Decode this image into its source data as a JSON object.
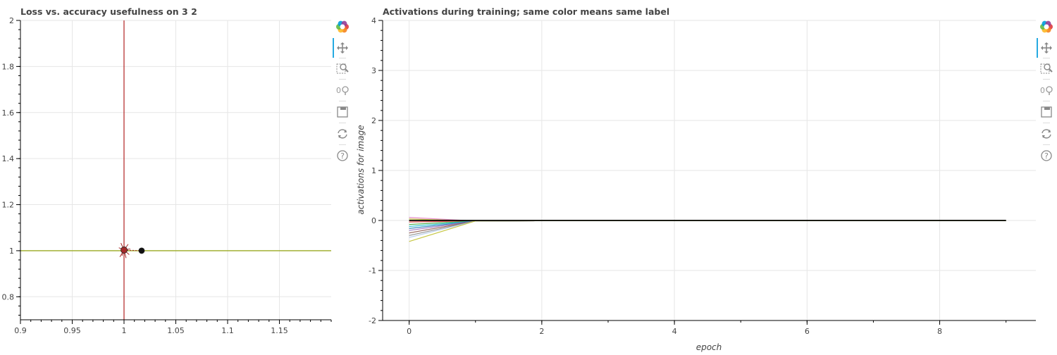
{
  "left_plot": {
    "title": "Loss vs. accuracy usefulness on 3 2"
  },
  "right_plot": {
    "title": "Activations during training; same color means same label",
    "xlabel": "epoch",
    "ylabel": "activations for image"
  },
  "toolbar": {
    "tools": [
      "bokeh-logo-icon",
      "pan-icon",
      "box-zoom-icon",
      "wheel-zoom-icon",
      "save-icon",
      "reset-icon",
      "help-icon"
    ],
    "active_tool": "pan-icon",
    "accent": "#26aae1"
  },
  "chart_data": [
    {
      "type": "scatter",
      "title": "Loss vs. accuracy usefulness on 3 2",
      "xlabel": "",
      "ylabel": "",
      "xlim": [
        0.9,
        1.2
      ],
      "ylim": [
        0.7,
        2.0
      ],
      "xticks": [
        "0.9",
        "0.95",
        "1",
        "1.05",
        "1.1",
        "1.15"
      ],
      "yticks": [
        "0.8",
        "1",
        "1.2",
        "1.4",
        "1.6",
        "1.8",
        "2"
      ],
      "grid": true,
      "reference_lines": [
        {
          "orientation": "vertical",
          "value": 1.0,
          "color": "#b22222"
        },
        {
          "orientation": "horizontal",
          "value": 1.0,
          "color": "#9aaa22"
        }
      ],
      "points": [
        {
          "x": 1.0,
          "y": 1.003,
          "color": "#a52a2a"
        },
        {
          "x": 1.017,
          "y": 1.0,
          "color": "#111111"
        }
      ],
      "trails": [
        {
          "dx": -0.003,
          "dy": 0.03
        },
        {
          "dx": -0.004,
          "dy": -0.03
        },
        {
          "dx": 0.004,
          "dy": 0.025
        },
        {
          "dx": 0.005,
          "dy": -0.02
        },
        {
          "dx": -0.005,
          "dy": 0.01
        },
        {
          "dx": 0.002,
          "dy": -0.035
        },
        {
          "dx": -0.002,
          "dy": -0.025
        },
        {
          "dx": 0.006,
          "dy": 0.005
        }
      ]
    },
    {
      "type": "line",
      "title": "Activations during training; same color means same label",
      "xlabel": "epoch",
      "ylabel": "activations for image",
      "xlim": [
        -0.4,
        9.45
      ],
      "ylim": [
        -2,
        4
      ],
      "xticks": [
        "0",
        "2",
        "4",
        "6",
        "8"
      ],
      "yticks": [
        "-2",
        "-1",
        "0",
        "1",
        "2",
        "3",
        "4"
      ],
      "grid": true,
      "x": [
        0,
        1,
        2,
        3,
        4,
        5,
        6,
        7,
        8,
        9
      ],
      "series": [
        {
          "color": "#e377c2",
          "values": [
            0.06,
            -0.01,
            -0.005,
            -0.005,
            -0.005,
            -0.005,
            -0.005,
            -0.005,
            -0.005,
            -0.005
          ]
        },
        {
          "color": "#bcbd22",
          "values": [
            0.03,
            -0.01,
            -0.005,
            -0.005,
            -0.005,
            -0.005,
            -0.005,
            -0.005,
            -0.005,
            -0.005
          ]
        },
        {
          "color": "#ff7f0e",
          "values": [
            0.0,
            -0.01,
            -0.005,
            -0.005,
            -0.005,
            -0.005,
            -0.005,
            -0.005,
            -0.005,
            -0.005
          ]
        },
        {
          "color": "#d62728",
          "values": [
            -0.03,
            -0.01,
            -0.005,
            -0.005,
            -0.005,
            -0.005,
            -0.005,
            -0.005,
            -0.005,
            -0.005
          ]
        },
        {
          "color": "#2ca02c",
          "values": [
            -0.08,
            -0.01,
            -0.005,
            -0.005,
            -0.005,
            -0.005,
            -0.005,
            -0.005,
            -0.005,
            -0.005
          ]
        },
        {
          "color": "#17becf",
          "values": [
            -0.12,
            -0.01,
            -0.005,
            -0.005,
            -0.005,
            -0.005,
            -0.005,
            -0.005,
            -0.005,
            -0.005
          ]
        },
        {
          "color": "#1f77b4",
          "values": [
            -0.16,
            -0.01,
            -0.005,
            -0.005,
            -0.005,
            -0.005,
            -0.005,
            -0.005,
            -0.005,
            -0.005
          ]
        },
        {
          "color": "#9467bd",
          "values": [
            -0.2,
            -0.01,
            -0.005,
            -0.005,
            -0.005,
            -0.005,
            -0.005,
            -0.005,
            -0.005,
            -0.005
          ]
        },
        {
          "color": "#8c564b",
          "values": [
            -0.25,
            -0.01,
            -0.005,
            -0.005,
            -0.005,
            -0.005,
            -0.005,
            -0.005,
            -0.005,
            -0.005
          ]
        },
        {
          "color": "#7f7f7f",
          "values": [
            -0.3,
            -0.01,
            -0.005,
            -0.005,
            -0.005,
            -0.005,
            -0.005,
            -0.005,
            -0.005,
            -0.005
          ]
        },
        {
          "color": "#aec7e8",
          "values": [
            -0.34,
            -0.01,
            -0.005,
            -0.005,
            -0.005,
            -0.005,
            -0.005,
            -0.005,
            -0.005,
            -0.005
          ]
        },
        {
          "color": "#bcbd22",
          "values": [
            -0.42,
            -0.01,
            -0.005,
            -0.005,
            -0.005,
            -0.005,
            -0.005,
            -0.005,
            -0.005,
            -0.005
          ]
        },
        {
          "color": "#000000",
          "values": [
            0.0,
            0.0,
            0.0,
            0.0,
            0.0,
            0.0,
            0.0,
            0.0,
            0.0,
            0.0
          ]
        }
      ]
    }
  ]
}
